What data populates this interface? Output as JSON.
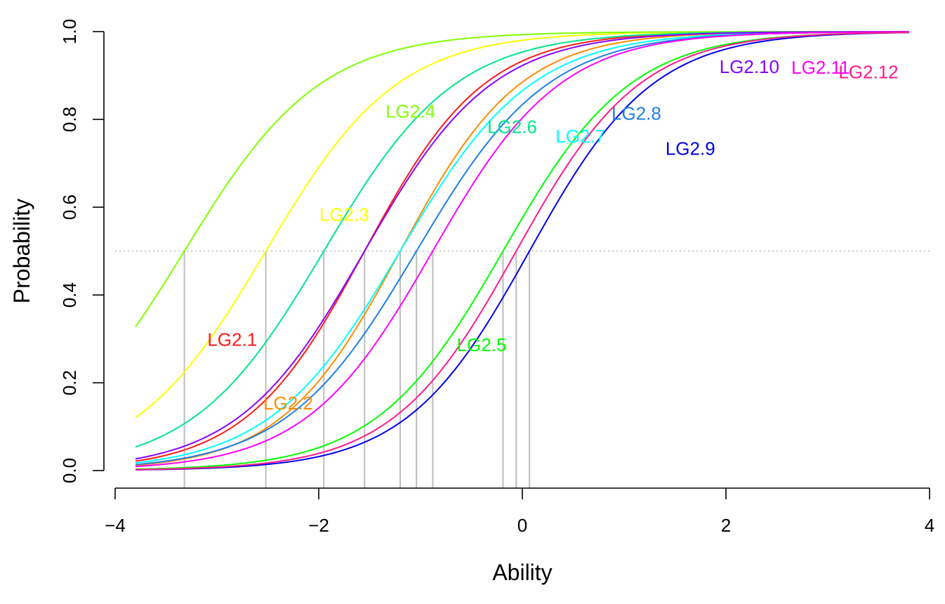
{
  "chart_data": {
    "type": "line",
    "title": "",
    "xlabel": "Ability",
    "ylabel": "Probability",
    "xlim": [
      -4,
      4
    ],
    "ylim": [
      0,
      1
    ],
    "x_ticks": [
      "−4",
      "−2",
      "0",
      "2",
      "4"
    ],
    "y_ticks": [
      "0.0",
      "0.2",
      "0.4",
      "0.6",
      "0.8",
      "1.0"
    ],
    "x_range_plotted": [
      -3.8,
      3.8
    ],
    "reference_probability": 0.5,
    "reference_line_style": "dotted gray",
    "grid": false,
    "legend": "none (inline curve labels)",
    "series": [
      {
        "name": "LG2.1",
        "color": "#ff1a1a",
        "a": 1.7,
        "b": -1.55,
        "label_at": [
          -2.85,
          0.295
        ]
      },
      {
        "name": "LG2.2",
        "color": "#ff8c00",
        "a": 1.7,
        "b": -1.2,
        "label_at": [
          -2.3,
          0.15
        ]
      },
      {
        "name": "LG2.3",
        "color": "#ffff00",
        "a": 1.55,
        "b": -2.52,
        "label_at": [
          -1.75,
          0.58
        ]
      },
      {
        "name": "LG2.4",
        "color": "#80ff00",
        "a": 1.5,
        "b": -3.32,
        "label_at": [
          -1.1,
          0.815
        ]
      },
      {
        "name": "LG2.5",
        "color": "#00ff00",
        "a": 1.6,
        "b": -0.19,
        "label_at": [
          -0.4,
          0.283
        ]
      },
      {
        "name": "LG2.6",
        "color": "#00e58a",
        "a": 1.55,
        "b": -1.95,
        "label_at": [
          -0.1,
          0.78
        ]
      },
      {
        "name": "LG2.7",
        "color": "#00ffff",
        "a": 1.55,
        "b": -1.2,
        "label_at": [
          0.57,
          0.758
        ]
      },
      {
        "name": "LG2.8",
        "color": "#1e7fe6",
        "a": 1.55,
        "b": -1.04,
        "label_at": [
          1.12,
          0.81
        ]
      },
      {
        "name": "LG2.9",
        "color": "#0000ee",
        "a": 1.65,
        "b": 0.07,
        "label_at": [
          1.65,
          0.73
        ]
      },
      {
        "name": "LG2.10",
        "color": "#8a00ff",
        "a": 1.6,
        "b": -1.55,
        "label_at": [
          2.23,
          0.917
        ]
      },
      {
        "name": "LG2.11",
        "color": "#ff00ff",
        "a": 1.6,
        "b": -0.88,
        "label_at": [
          2.93,
          0.915
        ]
      },
      {
        "name": "LG2.12",
        "color": "#ff1a8c",
        "a": 1.65,
        "b": -0.06,
        "label_at": [
          3.4,
          0.905
        ]
      }
    ],
    "threshold_lines_x": [
      -3.32,
      -2.52,
      -1.95,
      -1.55,
      -1.2,
      -1.04,
      -0.88,
      -0.19,
      -0.06,
      0.07
    ]
  }
}
